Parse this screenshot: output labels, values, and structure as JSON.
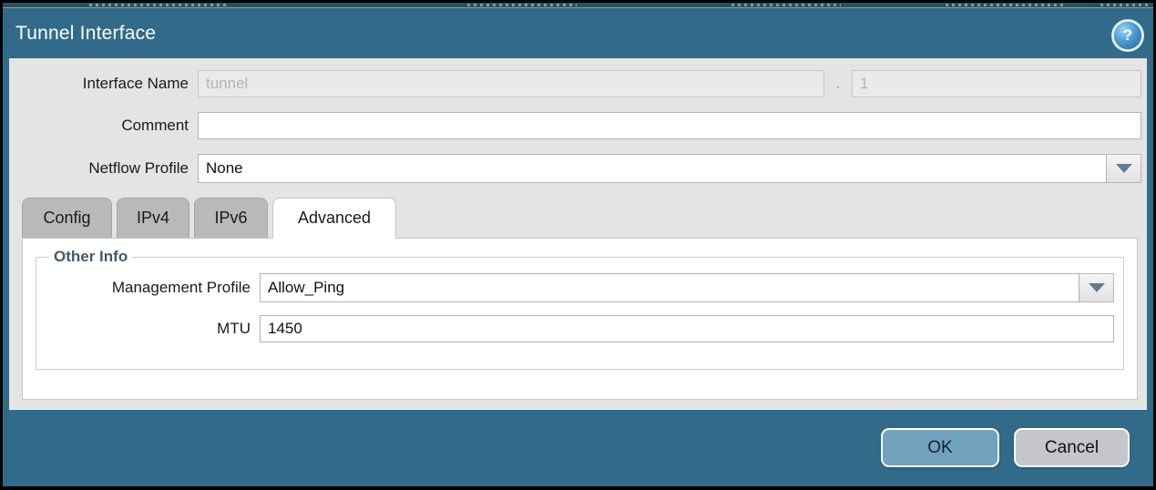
{
  "dialog": {
    "title": "Tunnel Interface",
    "help_icon_glyph": "?",
    "form": {
      "interface_name": {
        "label": "Interface Name",
        "value": "tunnel",
        "separator": ".",
        "subinterface_value": "1"
      },
      "comment": {
        "label": "Comment",
        "value": ""
      },
      "netflow_profile": {
        "label": "Netflow Profile",
        "value": "None"
      }
    },
    "tabs": [
      {
        "label": "Config",
        "active": false
      },
      {
        "label": "IPv4",
        "active": false
      },
      {
        "label": "IPv6",
        "active": false
      },
      {
        "label": "Advanced",
        "active": true
      }
    ],
    "advanced_panel": {
      "group_title": "Other Info",
      "management_profile": {
        "label": "Management Profile",
        "value": "Allow_Ping"
      },
      "mtu": {
        "label": "MTU",
        "value": "1450"
      }
    },
    "buttons": {
      "ok": "OK",
      "cancel": "Cancel"
    },
    "colors": {
      "modal_background": "#316b89",
      "panel_background": "#e4e4e4",
      "active_tab": "#ffffff",
      "inactive_tab": "#b9b9b9",
      "ok_button": "#71a3bf",
      "cancel_button": "#c5c5cc",
      "group_title_text": "#44596b",
      "dropdown_arrow": "#5f7d95"
    }
  }
}
